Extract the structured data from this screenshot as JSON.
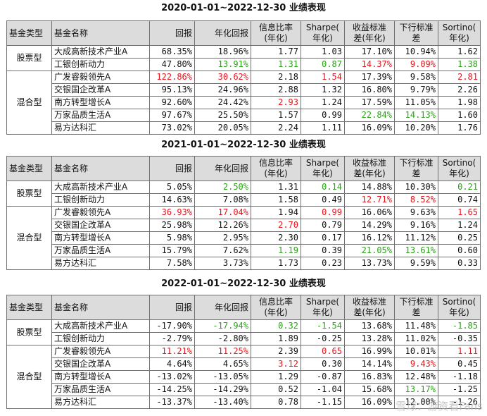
{
  "headers": [
    "基金类型",
    "基金名称",
    "回报",
    "年化回报",
    "信息比率(年化)",
    "Sharpe(年化)",
    "收益标准差(年化)",
    "下行标准差",
    "Sortino(年化)"
  ],
  "header_lines": [
    [
      "基金类型"
    ],
    [
      "基金名称"
    ],
    [
      "回报"
    ],
    [
      "年化回报"
    ],
    [
      "信息比率",
      "(年化)"
    ],
    [
      "Sharpe(",
      "年化)"
    ],
    [
      "收益标准",
      "差(年化)"
    ],
    [
      "下行标准",
      "差"
    ],
    [
      "Sortino(",
      "年化)"
    ]
  ],
  "colors": {
    "red": "#e8141b",
    "green": "#2aa316",
    "header_bg": "#dcdcdc"
  },
  "tables": [
    {
      "title": "2020-01-01~2022-12-30 业绩表现",
      "groups": [
        {
          "type": "股票型",
          "rows": [
            {
              "name": "大成高新技术产业A",
              "cells": [
                {
                  "v": "68.35%"
                },
                {
                  "v": "18.96%"
                },
                {
                  "v": "1.77"
                },
                {
                  "v": "1.03"
                },
                {
                  "v": "17.10%"
                },
                {
                  "v": "10.94%"
                },
                {
                  "v": "1.62"
                }
              ]
            },
            {
              "name": "工银创新动力",
              "cells": [
                {
                  "v": "47.80%"
                },
                {
                  "v": "13.91%",
                  "c": "green"
                },
                {
                  "v": "1.31",
                  "c": "green"
                },
                {
                  "v": "0.87",
                  "c": "green"
                },
                {
                  "v": "14.37%",
                  "c": "red"
                },
                {
                  "v": "9.09%",
                  "c": "red"
                },
                {
                  "v": "1.38",
                  "c": "green"
                }
              ]
            }
          ]
        },
        {
          "type": "混合型",
          "rows": [
            {
              "name": "广发睿毅领先A",
              "cells": [
                {
                  "v": "122.86%",
                  "c": "red"
                },
                {
                  "v": "30.62%",
                  "c": "red"
                },
                {
                  "v": "2.18"
                },
                {
                  "v": "1.54",
                  "c": "red"
                },
                {
                  "v": "17.39%"
                },
                {
                  "v": "9.58%"
                },
                {
                  "v": "2.81",
                  "c": "red"
                }
              ]
            },
            {
              "name": "交银国企改革A",
              "cells": [
                {
                  "v": "95.13%"
                },
                {
                  "v": "24.96%"
                },
                {
                  "v": "2.88"
                },
                {
                  "v": "1.32"
                },
                {
                  "v": "16.80%"
                },
                {
                  "v": "9.79%"
                },
                {
                  "v": "2.26"
                }
              ]
            },
            {
              "name": "南方转型增长A",
              "cells": [
                {
                  "v": "92.60%"
                },
                {
                  "v": "24.42%"
                },
                {
                  "v": "2.93",
                  "c": "red"
                },
                {
                  "v": "1.24"
                },
                {
                  "v": "17.59%"
                },
                {
                  "v": "11.05%"
                },
                {
                  "v": "1.98"
                }
              ]
            },
            {
              "name": "万家品质生活A",
              "cells": [
                {
                  "v": "97.67%"
                },
                {
                  "v": "25.50%"
                },
                {
                  "v": "1.57"
                },
                {
                  "v": "0.99"
                },
                {
                  "v": "22.84%",
                  "c": "green"
                },
                {
                  "v": "14.13%",
                  "c": "green"
                },
                {
                  "v": "1.60"
                }
              ]
            },
            {
              "name": "易方达科汇",
              "cells": [
                {
                  "v": "73.02%"
                },
                {
                  "v": "20.05%"
                },
                {
                  "v": "2.24"
                },
                {
                  "v": "1.11"
                },
                {
                  "v": "16.09%"
                },
                {
                  "v": "10.20%"
                },
                {
                  "v": "1.76"
                }
              ]
            }
          ]
        }
      ]
    },
    {
      "title": "2021-01-01~2022-12-30 业绩表现",
      "groups": [
        {
          "type": "股票型",
          "rows": [
            {
              "name": "大成高新技术产业A",
              "cells": [
                {
                  "v": "5.05%"
                },
                {
                  "v": "2.50%",
                  "c": "green"
                },
                {
                  "v": "1.31"
                },
                {
                  "v": "0.14",
                  "c": "green"
                },
                {
                  "v": "14.88%"
                },
                {
                  "v": "10.30%"
                },
                {
                  "v": "0.21",
                  "c": "green"
                }
              ]
            },
            {
              "name": "工银创新动力",
              "cells": [
                {
                  "v": "14.63%"
                },
                {
                  "v": "7.08%"
                },
                {
                  "v": "1.58"
                },
                {
                  "v": "0.49"
                },
                {
                  "v": "12.71%",
                  "c": "red"
                },
                {
                  "v": "8.52%",
                  "c": "red"
                },
                {
                  "v": "0.74"
                }
              ]
            }
          ]
        },
        {
          "type": "混合型",
          "rows": [
            {
              "name": "广发睿毅领先A",
              "cells": [
                {
                  "v": "36.93%",
                  "c": "red"
                },
                {
                  "v": "17.04%",
                  "c": "red"
                },
                {
                  "v": "1.94"
                },
                {
                  "v": "0.99",
                  "c": "red"
                },
                {
                  "v": "16.06%"
                },
                {
                  "v": "9.63%"
                },
                {
                  "v": "1.65",
                  "c": "red"
                }
              ]
            },
            {
              "name": "交银国企改革A",
              "cells": [
                {
                  "v": "25.98%"
                },
                {
                  "v": "12.26%"
                },
                {
                  "v": "2.70",
                  "c": "red"
                },
                {
                  "v": "0.79"
                },
                {
                  "v": "14.29%"
                },
                {
                  "v": "9.16%"
                },
                {
                  "v": "1.24"
                }
              ]
            },
            {
              "name": "南方转型增长A",
              "cells": [
                {
                  "v": "5.98%"
                },
                {
                  "v": "2.95%"
                },
                {
                  "v": "2.30"
                },
                {
                  "v": "0.17"
                },
                {
                  "v": "16.12%"
                },
                {
                  "v": "11.12%"
                },
                {
                  "v": "0.25"
                }
              ]
            },
            {
              "name": "万家品质生活A",
              "cells": [
                {
                  "v": "15.79%"
                },
                {
                  "v": "7.62%"
                },
                {
                  "v": "1.19",
                  "c": "green"
                },
                {
                  "v": "0.39"
                },
                {
                  "v": "21.05%",
                  "c": "green"
                },
                {
                  "v": "13.61%",
                  "c": "green"
                },
                {
                  "v": "0.60"
                }
              ]
            },
            {
              "name": "易方达科汇",
              "cells": [
                {
                  "v": "7.58%"
                },
                {
                  "v": "3.73%"
                },
                {
                  "v": "1.73"
                },
                {
                  "v": "0.23"
                },
                {
                  "v": "13.73%"
                },
                {
                  "v": "9.59%"
                },
                {
                  "v": "0.33"
                }
              ]
            }
          ]
        }
      ]
    },
    {
      "title": "2022-01-01~2022-12-30 业绩表现",
      "groups": [
        {
          "type": "股票型",
          "rows": [
            {
              "name": "大成高新技术产业A",
              "cells": [
                {
                  "v": "-17.90%"
                },
                {
                  "v": "-17.94%",
                  "c": "green"
                },
                {
                  "v": "0.32",
                  "c": "green"
                },
                {
                  "v": "-1.54",
                  "c": "green"
                },
                {
                  "v": "13.68%"
                },
                {
                  "v": "11.48%"
                },
                {
                  "v": "-1.85",
                  "c": "green"
                }
              ]
            },
            {
              "name": "工银创新动力",
              "cells": [
                {
                  "v": "-2.79%"
                },
                {
                  "v": "-2.80%"
                },
                {
                  "v": "1.89"
                },
                {
                  "v": "-0.25"
                },
                {
                  "v": "13.28%"
                },
                {
                  "v": "11.02%"
                },
                {
                  "v": "-0.35"
                }
              ]
            }
          ]
        },
        {
          "type": "混合型",
          "rows": [
            {
              "name": "广发睿毅领先A",
              "cells": [
                {
                  "v": "11.21%",
                  "c": "red"
                },
                {
                  "v": "11.25%",
                  "c": "red"
                },
                {
                  "v": "2.39"
                },
                {
                  "v": "0.65",
                  "c": "red"
                },
                {
                  "v": "16.99%"
                },
                {
                  "v": "10.01%"
                },
                {
                  "v": "1.11",
                  "c": "red"
                }
              ]
            },
            {
              "name": "交银国企改革A",
              "cells": [
                {
                  "v": "4.64%"
                },
                {
                  "v": "4.65%"
                },
                {
                  "v": "3.12",
                  "c": "red"
                },
                {
                  "v": "0.30"
                },
                {
                  "v": "14.14%"
                },
                {
                  "v": "9.43%",
                  "c": "red"
                },
                {
                  "v": "0.45"
                }
              ]
            },
            {
              "name": "南方转型增长A",
              "cells": [
                {
                  "v": "-13.02%"
                },
                {
                  "v": "-13.05%"
                },
                {
                  "v": "1.29"
                },
                {
                  "v": "-0.87"
                },
                {
                  "v": "16.83%"
                },
                {
                  "v": "12.48%"
                },
                {
                  "v": "-1.18"
                }
              ]
            },
            {
              "name": "万家品质生活A",
              "cells": [
                {
                  "v": "-14.25%"
                },
                {
                  "v": "-14.29%"
                },
                {
                  "v": "0.52"
                },
                {
                  "v": "-1.04"
                },
                {
                  "v": "15.68%"
                },
                {
                  "v": "13.17%",
                  "c": "green"
                },
                {
                  "v": "-1.25"
                }
              ]
            },
            {
              "name": "易方达科汇",
              "cells": [
                {
                  "v": "-13.37%"
                },
                {
                  "v": "-13.40%"
                },
                {
                  "v": "0.78"
                },
                {
                  "v": "-1.15"
                },
                {
                  "v": "16.09%"
                },
                {
                  "v": "12.00%"
                },
                {
                  "v": "-1.26"
                }
              ]
            }
          ]
        }
      ]
    }
  ],
  "watermark": "雪球：游资看Fans"
}
